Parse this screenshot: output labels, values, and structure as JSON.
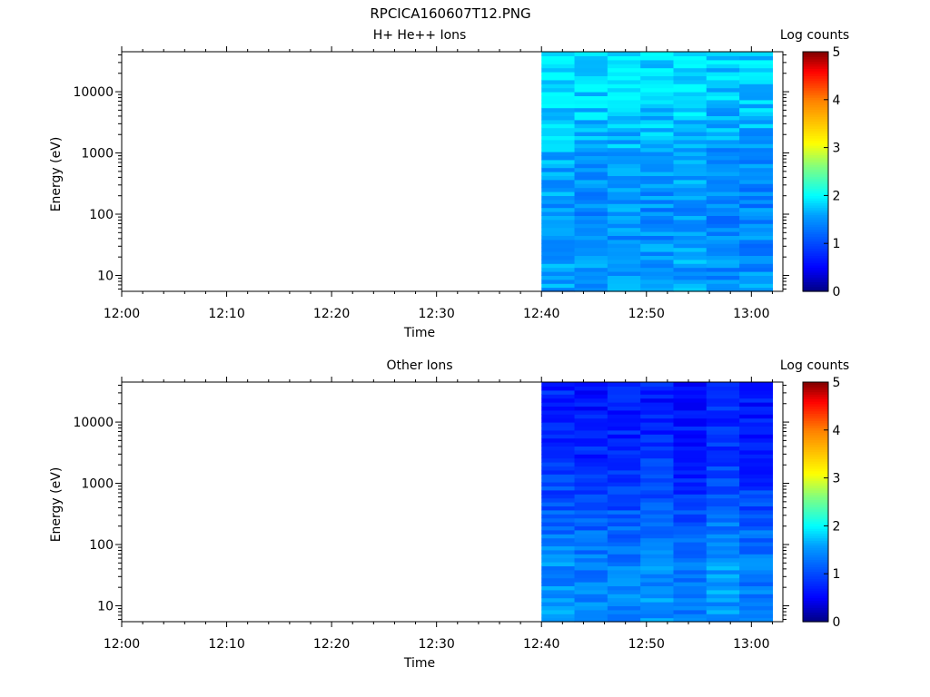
{
  "figure": {
    "title": "RPCICA160607T12.PNG"
  },
  "chart_data": [
    {
      "type": "heatmap",
      "title": "H+ He++ Ions",
      "xlabel": "Time",
      "ylabel": "Energy (eV)",
      "x_ticks": [
        "12:00",
        "12:10",
        "12:20",
        "12:30",
        "12:40",
        "12:50",
        "13:00"
      ],
      "xlim": [
        "12:00",
        "13:03"
      ],
      "y_scale": "log",
      "y_ticks": [
        10,
        100,
        1000,
        10000
      ],
      "y_tick_labels": [
        "10",
        "100",
        "1000",
        "10000"
      ],
      "ylim": [
        5.5,
        45000
      ],
      "data_time_range": [
        "12:40",
        "13:02"
      ],
      "time_bins": 7,
      "energy_bins": 60,
      "colorbar": {
        "label": "Log counts",
        "range": [
          0,
          5
        ],
        "ticks": [
          "0",
          "1",
          "2",
          "3",
          "4",
          "5"
        ],
        "colormap": "rainbow"
      },
      "level_profile": [
        {
          "log10_energy": 0.8,
          "log_counts": 1.55
        },
        {
          "log10_energy": 2.0,
          "log_counts": 1.45
        },
        {
          "log10_energy": 3.0,
          "log_counts": 1.6
        },
        {
          "log10_energy": 3.8,
          "log_counts": 1.8
        },
        {
          "log10_energy": 4.6,
          "log_counts": 1.9
        }
      ],
      "level_range": [
        1.1,
        2.0
      ]
    },
    {
      "type": "heatmap",
      "title": "Other Ions",
      "xlabel": "Time",
      "ylabel": "Energy (eV)",
      "x_ticks": [
        "12:00",
        "12:10",
        "12:20",
        "12:30",
        "12:40",
        "12:50",
        "13:00"
      ],
      "xlim": [
        "12:00",
        "13:03"
      ],
      "y_scale": "log",
      "y_ticks": [
        10,
        100,
        1000,
        10000
      ],
      "y_tick_labels": [
        "10",
        "100",
        "1000",
        "10000"
      ],
      "ylim": [
        5.5,
        45000
      ],
      "data_time_range": [
        "12:40",
        "13:02"
      ],
      "time_bins": 7,
      "energy_bins": 60,
      "colorbar": {
        "label": "Log counts",
        "range": [
          0,
          5
        ],
        "ticks": [
          "0",
          "1",
          "2",
          "3",
          "4",
          "5"
        ],
        "colormap": "rainbow"
      },
      "level_profile": [
        {
          "log10_energy": 0.8,
          "log_counts": 1.5
        },
        {
          "log10_energy": 2.0,
          "log_counts": 1.35
        },
        {
          "log10_energy": 3.0,
          "log_counts": 0.9
        },
        {
          "log10_energy": 3.8,
          "log_counts": 0.75
        },
        {
          "log10_energy": 4.6,
          "log_counts": 0.65
        }
      ],
      "level_range": [
        0.45,
        1.9
      ]
    }
  ]
}
